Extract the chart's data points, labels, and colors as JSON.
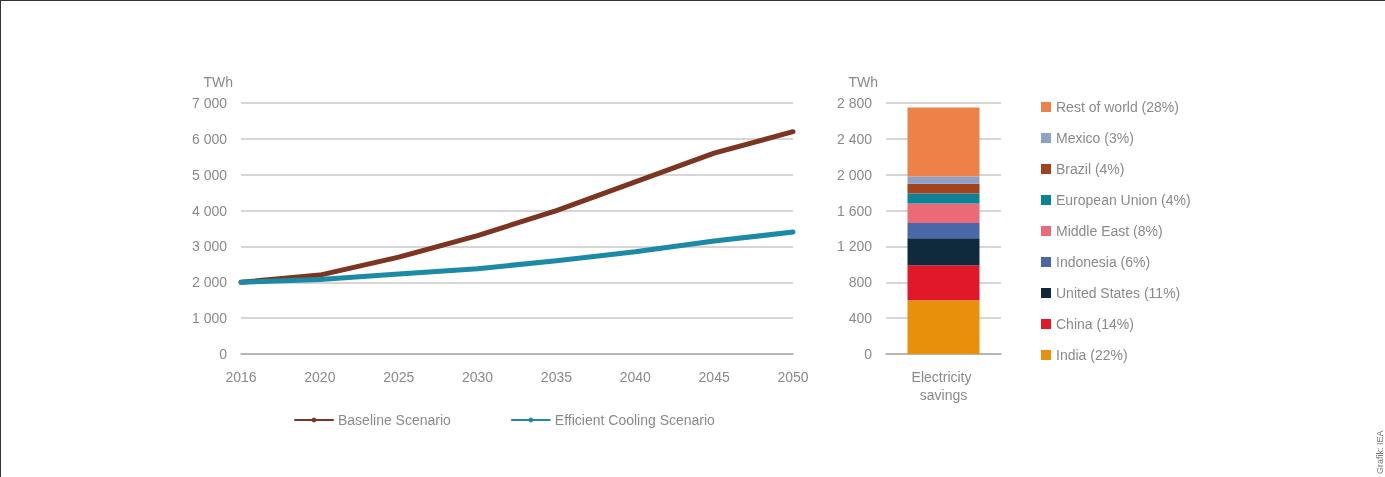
{
  "chart_data": [
    {
      "type": "line",
      "ylabel": "TWh",
      "categories": [
        "2016",
        "2020",
        "2025",
        "2030",
        "2035",
        "2040",
        "2045",
        "2050"
      ],
      "series": [
        {
          "name": "Baseline Scenario",
          "color": "#7b3520",
          "values": [
            2000,
            2200,
            2700,
            3300,
            4000,
            4800,
            5600,
            6200
          ]
        },
        {
          "name": "Efficient Cooling Scenario",
          "color": "#1b8aa6",
          "values": [
            2000,
            2080,
            2230,
            2380,
            2600,
            2850,
            3150,
            3400
          ]
        }
      ],
      "ylim": [
        0,
        7000
      ],
      "yticks": [
        0,
        {
          "value": 1000,
          "label": "1 000"
        },
        {
          "value": 2000,
          "label": "2 000"
        },
        {
          "value": 3000,
          "label": "3 000"
        },
        {
          "value": 4000,
          "label": "4 000"
        },
        {
          "value": 5000,
          "label": "5 000"
        },
        {
          "value": 6000,
          "label": "6 000"
        },
        {
          "value": 7000,
          "label": "7 000"
        }
      ],
      "grid": "y",
      "legend": "bottom",
      "marker": "none",
      "line_style": "solid"
    },
    {
      "type": "bar",
      "ylabel": "TWh",
      "categories": [
        "Electricity savings"
      ],
      "stacked": true,
      "series": [
        {
          "name": "India (22%)",
          "color": "#e8900c",
          "values": [
            600
          ]
        },
        {
          "name": "China (14%)",
          "color": "#e0182a",
          "values": [
            390
          ]
        },
        {
          "name": "United States (11%)",
          "color": "#0f2a3c",
          "values": [
            300
          ]
        },
        {
          "name": "Indonesia (6%)",
          "color": "#4a67a8",
          "values": [
            170
          ]
        },
        {
          "name": "Middle East (8%)",
          "color": "#ec6a78",
          "values": [
            220
          ]
        },
        {
          "name": "European Union (4%)",
          "color": "#0d8296",
          "values": [
            110
          ]
        },
        {
          "name": "Brazil (4%)",
          "color": "#a1431c",
          "values": [
            110
          ]
        },
        {
          "name": "Mexico (3%)",
          "color": "#8ea1c8",
          "values": [
            80
          ]
        },
        {
          "name": "Rest of world (28%)",
          "color": "#ec8248",
          "values": [
            770
          ]
        }
      ],
      "ylim": [
        0,
        2800
      ],
      "yticks": [
        0,
        400,
        800,
        {
          "value": 1200,
          "label": "1 200"
        },
        {
          "value": 1600,
          "label": "1 600"
        },
        {
          "value": 2000,
          "label": "2 000"
        },
        {
          "value": 2400,
          "label": "2 400"
        },
        {
          "value": 2800,
          "label": "2 800"
        }
      ],
      "grid": "y",
      "legend": "right",
      "annotations": [
        "Grafik: IEA"
      ]
    }
  ]
}
